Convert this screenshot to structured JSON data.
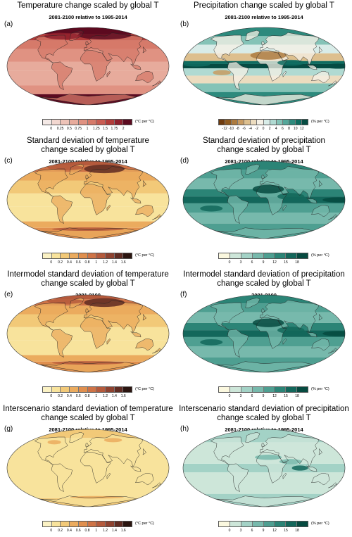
{
  "panels": [
    {
      "label": "(a)",
      "title_lines": [
        "Temperature change scaled by global T"
      ],
      "subtitle": "2081-2100 relative to 1995-2014",
      "palette": "temp",
      "unit": "(°C per °C)",
      "ticks": [
        "0",
        "0.25",
        "0.5",
        "0.75",
        "1",
        "1.25",
        "1.5",
        "1.75",
        "2"
      ],
      "colors": [
        "#f4e9e6",
        "#f2d7d0",
        "#edc3b8",
        "#e7ab9c",
        "#e09282",
        "#d67a6a",
        "#c95c52",
        "#b23c3a",
        "#8e1f2c",
        "#5c0a20"
      ]
    },
    {
      "label": "(b)",
      "title_lines": [
        "Precipitation change scaled by global T"
      ],
      "subtitle": "2081-2100 relative to 1995-2014",
      "palette": "precip_div",
      "unit": "(% per °C)",
      "ticks": [
        "-12",
        "-10",
        "-8",
        "-6",
        "-4",
        "-2",
        "0",
        "2",
        "4",
        "6",
        "8",
        "10",
        "12"
      ],
      "colors": [
        "#6e3b0e",
        "#8f5a1f",
        "#ad7b3f",
        "#c89b62",
        "#ddbf8e",
        "#ecdcbf",
        "#f5f0e6",
        "#d8ece8",
        "#b0dad2",
        "#84c3b7",
        "#55a79a",
        "#2d8a7d",
        "#0f6c60",
        "#064c43"
      ]
    },
    {
      "label": "(c)",
      "title_lines": [
        "Standard deviation of temperature",
        "change scaled by global T"
      ],
      "subtitle": "2081-2100 relative to 1995-2014",
      "palette": "sd_temp",
      "unit": "(°C per °C)",
      "ticks": [
        "0",
        "0.2",
        "0.4",
        "0.6",
        "0.8",
        "1",
        "1.2",
        "1.4",
        "1.6"
      ],
      "colors": [
        "#fbf2c4",
        "#f8e39c",
        "#f2c978",
        "#ebab5e",
        "#e08f4e",
        "#cf7346",
        "#b55a3c",
        "#8e4230",
        "#5f2b22",
        "#2b1510"
      ]
    },
    {
      "label": "(d)",
      "title_lines": [
        "Standard deviation of precipitation",
        "change scaled by global T"
      ],
      "subtitle": "2081-2100 relative to 1995-2014",
      "palette": "sd_precip",
      "unit": "(% per °C)",
      "ticks": [
        "0",
        "3",
        "6",
        "9",
        "12",
        "15",
        "18"
      ],
      "colors": [
        "#fbf8df",
        "#cde6d9",
        "#a3d2c6",
        "#77b9ac",
        "#4e9f91",
        "#2b8476",
        "#13675b",
        "#064a40"
      ]
    },
    {
      "label": "(e)",
      "title_lines": [
        "Intermodel standard deviation of temperature",
        "change scaled by global T"
      ],
      "subtitle": "2081-2100",
      "palette": "sd_temp",
      "unit": "(°C per °C)",
      "ticks": [
        "0",
        "0.2",
        "0.4",
        "0.6",
        "0.8",
        "1",
        "1.2",
        "1.4",
        "1.6"
      ],
      "colors": [
        "#fbf2c4",
        "#f8e39c",
        "#f2c978",
        "#ebab5e",
        "#e08f4e",
        "#cf7346",
        "#b55a3c",
        "#8e4230",
        "#5f2b22",
        "#2b1510"
      ]
    },
    {
      "label": "(f)",
      "title_lines": [
        "Intermodel standard deviation of precipitation",
        "change scaled by global T"
      ],
      "subtitle": "2081-2100",
      "palette": "sd_precip",
      "unit": "(% per °C)",
      "ticks": [
        "0",
        "3",
        "6",
        "9",
        "12",
        "15",
        "18"
      ],
      "colors": [
        "#fbf8df",
        "#cde6d9",
        "#a3d2c6",
        "#77b9ac",
        "#4e9f91",
        "#2b8476",
        "#13675b",
        "#064a40"
      ]
    },
    {
      "label": "(g)",
      "title_lines": [
        "Interscenario standard deviation of temperature",
        "change scaled by global T"
      ],
      "subtitle": "2081-2100 relative to 1995-2014",
      "palette": "inter_temp",
      "unit": "(°C per °C)",
      "ticks": [
        "0",
        "0.2",
        "0.4",
        "0.6",
        "0.8",
        "1",
        "1.2",
        "1.4",
        "1.6"
      ],
      "colors": [
        "#fbf2c4",
        "#f8e39c",
        "#f2c978",
        "#ebab5e",
        "#e08f4e",
        "#cf7346",
        "#b55a3c",
        "#8e4230",
        "#5f2b22",
        "#2b1510"
      ]
    },
    {
      "label": "(h)",
      "title_lines": [
        "Interscenario standard deviation of precipitation",
        "change scaled by global T"
      ],
      "subtitle": "2081-2100 relative to 1995-2014",
      "palette": "inter_precip",
      "unit": "(% per °C)",
      "ticks": [
        "0",
        "3",
        "6",
        "9",
        "12",
        "15",
        "18"
      ],
      "colors": [
        "#fbf8df",
        "#cde6d9",
        "#a3d2c6",
        "#77b9ac",
        "#4e9f91",
        "#2b8476",
        "#13675b",
        "#064a40"
      ]
    }
  ]
}
